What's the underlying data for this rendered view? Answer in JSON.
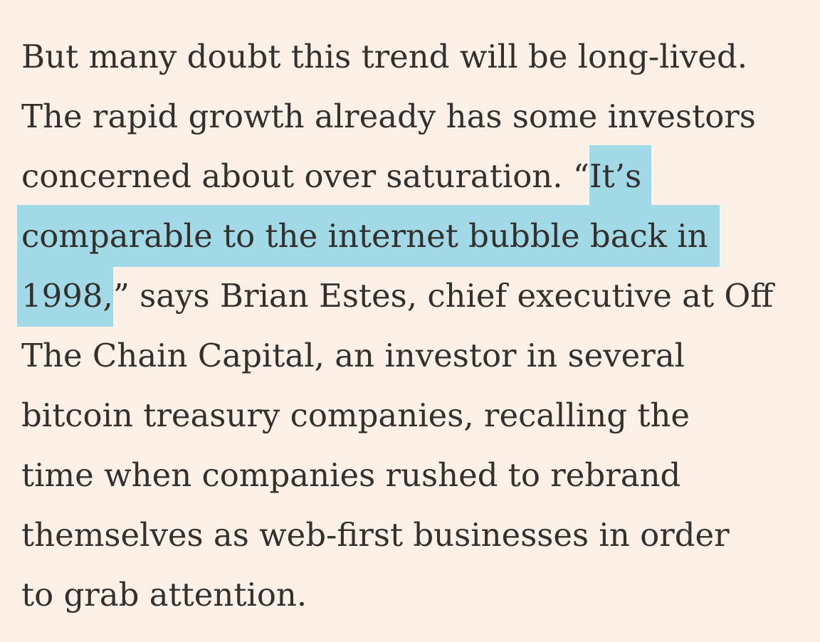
{
  "article": {
    "paragraph": {
      "line1": "But many doubt this trend will be long-lived.",
      "line2": "The rapid growth already has some investors",
      "line3_pre": "concerned about over saturation. “",
      "line3_hl": "It’s",
      "line4_hl": "comparable to the internet bubble back in",
      "line5_hl": "1998,",
      "line5_post": "” says Brian Estes, chief executive at Off",
      "line6": "The Chain Capital, an investor in several",
      "line7": "bitcoin treasury companies, recalling the",
      "line8": "time when companies rushed to rebrand",
      "line9": "themselves as web-first businesses in order",
      "line10": "to grab attention."
    },
    "highlight_color": "#a1d9e7",
    "background_color": "#fdf0e6",
    "text_color": "#33302e"
  }
}
